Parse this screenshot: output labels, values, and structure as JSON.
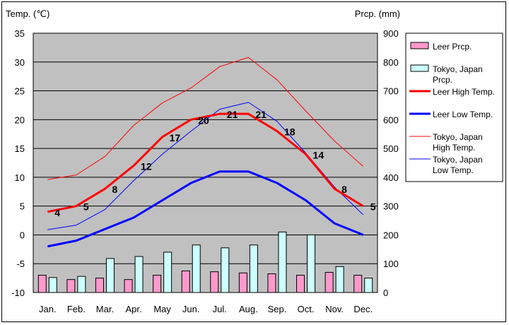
{
  "chart_data": {
    "type": "bar+line",
    "categories": [
      "Jan.",
      "Feb.",
      "Mar.",
      "Apr.",
      "May",
      "Jun.",
      "Jul.",
      "Aug.",
      "Sep.",
      "Oct.",
      "Nov.",
      "Dec."
    ],
    "left_axis": {
      "label": "Temp. (℃)",
      "ylim": [
        -10,
        35
      ],
      "ticks": [
        -10,
        -5,
        0,
        5,
        10,
        15,
        20,
        25,
        30,
        35
      ]
    },
    "right_axis": {
      "label": "Prcp. (mm)",
      "ylim": [
        0,
        900
      ],
      "ticks": [
        0,
        100,
        200,
        300,
        400,
        500,
        600,
        700,
        800,
        900
      ]
    },
    "grid": true,
    "legend_position": "right",
    "series": [
      {
        "name": "Leer Prcp.",
        "kind": "bar",
        "axis": "right",
        "color": "#ff99cc",
        "values": [
          60,
          45,
          50,
          45,
          60,
          75,
          72,
          68,
          65,
          60,
          70,
          60
        ]
      },
      {
        "name": "Tokyo, Japan Prcp.",
        "kind": "bar",
        "axis": "right",
        "color": "#ccffff",
        "values": [
          52,
          56,
          118,
          125,
          140,
          165,
          155,
          165,
          210,
          200,
          90,
          50
        ]
      },
      {
        "name": "Leer High Temp.",
        "kind": "line",
        "axis": "left",
        "color": "#ff0000",
        "width": "thick",
        "values": [
          4,
          5,
          8,
          12,
          17,
          20,
          21,
          21,
          18,
          14,
          8,
          5
        ],
        "labels": [
          "4",
          "5",
          "8",
          "12",
          "17",
          "20",
          "21",
          "21",
          "18",
          "14",
          "8",
          "5"
        ]
      },
      {
        "name": "Leer Low Temp.",
        "kind": "line",
        "axis": "left",
        "color": "#0000ff",
        "width": "thick",
        "values": [
          -2,
          -1,
          1,
          3,
          6,
          9,
          11,
          11,
          9,
          6,
          2,
          0
        ]
      },
      {
        "name": "Tokyo, Japan High Temp.",
        "kind": "line",
        "axis": "left",
        "color": "#ff0000",
        "width": "thin",
        "values": [
          9.6,
          10.4,
          13.6,
          19.0,
          22.9,
          25.5,
          29.2,
          30.8,
          26.9,
          21.5,
          16.3,
          11.9
        ]
      },
      {
        "name": "Tokyo, Japan Low Temp.",
        "kind": "line",
        "axis": "left",
        "color": "#0000ff",
        "width": "thin",
        "values": [
          0.9,
          1.7,
          4.4,
          9.4,
          14.0,
          18.0,
          21.8,
          23.0,
          19.7,
          14.2,
          8.3,
          3.5
        ]
      }
    ],
    "legend": [
      {
        "label": "Leer Prcp.",
        "symbol": "box",
        "color": "#ff99cc"
      },
      {
        "label": "Tokyo, Japan Prcp.",
        "symbol": "box",
        "color": "#ccffff"
      },
      {
        "label": "Leer High Temp.",
        "symbol": "thick-line",
        "color": "#ff0000"
      },
      {
        "label": "Leer Low Temp.",
        "symbol": "thick-line",
        "color": "#0000ff"
      },
      {
        "label": "Tokyo, Japan High Temp.",
        "symbol": "thin-line",
        "color": "#ff0000"
      },
      {
        "label": "Tokyo, Japan Low Temp.",
        "symbol": "thin-line",
        "color": "#0000ff"
      }
    ]
  }
}
